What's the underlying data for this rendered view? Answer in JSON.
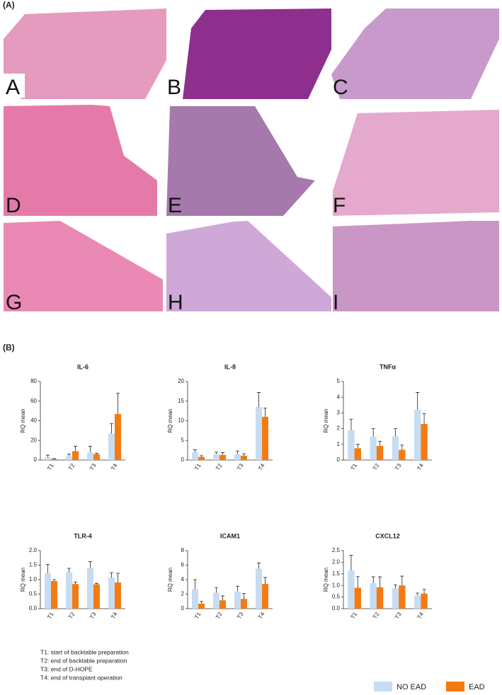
{
  "panel_labels": [
    "(A)",
    "(B)"
  ],
  "images": [
    {
      "label": "A"
    },
    {
      "label": "B"
    },
    {
      "label": "C"
    },
    {
      "label": "D"
    },
    {
      "label": "E"
    },
    {
      "label": "F"
    },
    {
      "label": "G"
    },
    {
      "label": "H"
    },
    {
      "label": "I"
    }
  ],
  "chart_data": [
    {
      "type": "bar",
      "title": "IL-6",
      "ylabel": "RQ mean",
      "categories": [
        "T1",
        "T2",
        "T3",
        "T4"
      ],
      "ylim": [
        0,
        80
      ],
      "yticks": [
        0,
        20,
        40,
        60,
        80
      ],
      "series": [
        {
          "name": "NO EAD",
          "color": "#c6dcf2",
          "values": [
            3,
            4,
            8,
            27
          ],
          "errors": [
            2,
            2,
            6,
            10
          ]
        },
        {
          "name": "EAD",
          "color": "#f47b12",
          "values": [
            1,
            9,
            6,
            47
          ],
          "errors": [
            0.5,
            5,
            1,
            21
          ]
        }
      ]
    },
    {
      "type": "bar",
      "title": "IL-8",
      "ylabel": "RQ mean",
      "categories": [
        "T1",
        "T2",
        "T3",
        "T4"
      ],
      "ylim": [
        0,
        20
      ],
      "yticks": [
        0,
        5,
        10,
        15,
        20
      ],
      "series": [
        {
          "name": "NO EAD",
          "color": "#c6dcf2",
          "values": [
            2,
            1.5,
            1.5,
            13.5
          ],
          "errors": [
            0.6,
            0.5,
            0.8,
            3.7
          ]
        },
        {
          "name": "EAD",
          "color": "#f47b12",
          "values": [
            0.8,
            1.3,
            1.1,
            11
          ],
          "errors": [
            0.3,
            0.6,
            0.5,
            2.2
          ]
        }
      ]
    },
    {
      "type": "bar",
      "title": "TNFα",
      "ylabel": "RQ mean",
      "categories": [
        "T1",
        "T2",
        "T3",
        "T4"
      ],
      "ylim": [
        0,
        5
      ],
      "yticks": [
        0,
        1,
        2,
        3,
        4,
        5
      ],
      "series": [
        {
          "name": "NO EAD",
          "color": "#c6dcf2",
          "values": [
            1.9,
            1.5,
            1.5,
            3.2
          ],
          "errors": [
            0.7,
            0.5,
            0.5,
            1.1
          ]
        },
        {
          "name": "EAD",
          "color": "#f47b12",
          "values": [
            0.75,
            0.9,
            0.65,
            2.3
          ],
          "errors": [
            0.25,
            0.3,
            0.3,
            0.65
          ]
        }
      ]
    },
    {
      "type": "bar",
      "title": "TLR-4",
      "ylabel": "RQ mean",
      "categories": [
        "T1",
        "T2",
        "T3",
        "T4"
      ],
      "ylim": [
        0,
        2
      ],
      "yticks": [
        {
          "value": 0,
          "label": "0.0"
        },
        {
          "value": 0.5,
          "label": "0.5"
        },
        {
          "value": 1,
          "label": "1.0"
        },
        {
          "value": 1.5,
          "label": "1.5"
        },
        {
          "value": 2,
          "label": "2.0"
        }
      ],
      "series": [
        {
          "name": "NO EAD",
          "color": "#c6dcf2",
          "values": [
            1.22,
            1.25,
            1.4,
            1.07
          ],
          "errors": [
            0.3,
            0.14,
            0.22,
            0.17
          ]
        },
        {
          "name": "EAD",
          "color": "#f47b12",
          "values": [
            0.95,
            0.85,
            0.84,
            0.9
          ],
          "errors": [
            0.05,
            0.07,
            0.03,
            0.32
          ]
        }
      ]
    },
    {
      "type": "bar",
      "title": "ICAM1",
      "ylabel": "RQ mean",
      "categories": [
        "T1",
        "T2",
        "T3",
        "T4"
      ],
      "ylim": [
        0,
        8
      ],
      "yticks": [
        0,
        2,
        4,
        6,
        8
      ],
      "series": [
        {
          "name": "NO EAD",
          "color": "#c6dcf2",
          "values": [
            2.7,
            2.2,
            2.35,
            5.5
          ],
          "errors": [
            1.3,
            0.7,
            0.75,
            0.8
          ]
        },
        {
          "name": "EAD",
          "color": "#f47b12",
          "values": [
            0.7,
            1.15,
            1.35,
            3.4
          ],
          "errors": [
            0.3,
            0.6,
            0.75,
            0.9
          ]
        }
      ]
    },
    {
      "type": "bar",
      "title": "CXCL12",
      "ylabel": "RQ mean",
      "categories": [
        "T1",
        "T2",
        "T3",
        "T4"
      ],
      "ylim": [
        0,
        2.5
      ],
      "yticks": [
        {
          "value": 0,
          "label": "0.0"
        },
        {
          "value": 0.5,
          "label": "0.5"
        },
        {
          "value": 1,
          "label": "1.0"
        },
        {
          "value": 1.5,
          "label": "1.5"
        },
        {
          "value": 2,
          "label": "2.0"
        },
        {
          "value": 2.5,
          "label": "2.5"
        }
      ],
      "series": [
        {
          "name": "NO EAD",
          "color": "#c6dcf2",
          "values": [
            1.65,
            1.1,
            0.87,
            0.57
          ],
          "errors": [
            0.65,
            0.27,
            0.16,
            0.1
          ]
        },
        {
          "name": "EAD",
          "color": "#f47b12",
          "values": [
            0.9,
            0.92,
            1.0,
            0.65
          ],
          "errors": [
            0.48,
            0.45,
            0.4,
            0.18
          ]
        }
      ]
    }
  ],
  "notes": [
    "T1: start of backtable preparation",
    "T2: end of backtable preparation",
    "T3: end of D-HOPE",
    "T4: end of transplant operation"
  ]
}
